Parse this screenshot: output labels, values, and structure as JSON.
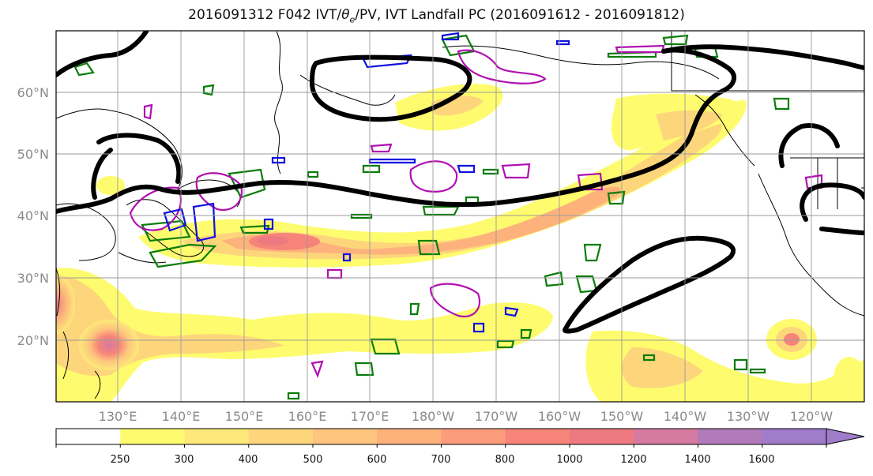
{
  "title": {
    "prefix": "2016091312 F042 IVT/",
    "theta_symbol": "θ",
    "theta_sub": "e",
    "suffix": "/PV, IVT Landfall PC (2016091612 - 2016091812)"
  },
  "map": {
    "lat_labels": [
      "20°N",
      "30°N",
      "40°N",
      "50°N",
      "60°N"
    ],
    "lon_labels": [
      "130°E",
      "140°E",
      "150°E",
      "160°E",
      "170°E",
      "180°W",
      "170°W",
      "160°W",
      "150°W",
      "140°W",
      "130°W",
      "120°W"
    ]
  },
  "colorbar": {
    "levels": [
      "250",
      "300",
      "400",
      "500",
      "600",
      "700",
      "800",
      "1000",
      "1200",
      "1400",
      "1600"
    ],
    "colors": [
      "#ffffff",
      "#fefc6e",
      "#fde97a",
      "#fdd67c",
      "#fdc57d",
      "#fdb27c",
      "#fc9c7b",
      "#f68479",
      "#ec7a80",
      "#d57aa0",
      "#b17ab8",
      "#a07ccb"
    ]
  },
  "chart_data": {
    "type": "heatmap",
    "variable": "IVT",
    "levels": [
      250,
      300,
      400,
      500,
      600,
      700,
      800,
      1000,
      1200,
      1400,
      1600
    ],
    "lat_ticks": [
      20,
      30,
      40,
      50,
      60
    ],
    "lon_ticks": [
      130,
      140,
      150,
      160,
      170,
      180,
      -170,
      -160,
      -150,
      -140,
      -130,
      -120
    ],
    "colors": {
      "pv_contour": "#000000",
      "theta_e_contour_green": "#0a7d0a",
      "theta_e_contour_blue": "#1010e0",
      "theta_e_contour_magenta": "#b010b0"
    }
  }
}
